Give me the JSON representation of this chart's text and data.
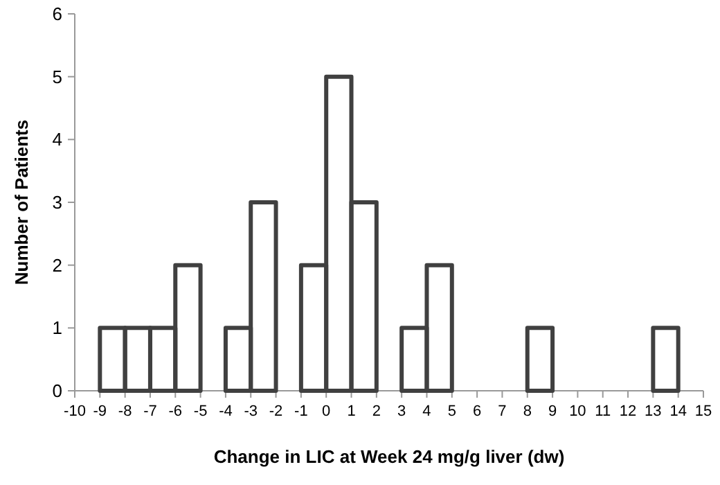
{
  "chart_data": {
    "type": "histogram",
    "xlabel": "Change in LIC at Week 24 mg/g liver (dw)",
    "ylabel": "Number of Patients",
    "bins": [
      -10,
      -9,
      -8,
      -7,
      -6,
      -5,
      -4,
      -3,
      -2,
      -1,
      0,
      1,
      2,
      3,
      4,
      5,
      6,
      7,
      8,
      9,
      10,
      11,
      12,
      13,
      14,
      15
    ],
    "values": [
      0,
      1,
      1,
      1,
      2,
      0,
      1,
      3,
      0,
      2,
      5,
      3,
      0,
      1,
      2,
      0,
      0,
      0,
      1,
      0,
      0,
      0,
      0,
      1,
      0
    ],
    "color": "#404040",
    "xlim": [
      -10,
      15
    ],
    "xticks": [
      -10,
      -9,
      -8,
      -7,
      -6,
      -5,
      -4,
      -3,
      -2,
      -1,
      0,
      1,
      2,
      3,
      4,
      5,
      6,
      7,
      8,
      9,
      10,
      11,
      12,
      13,
      14,
      15
    ],
    "ylim": [
      0,
      6
    ],
    "yticks": [
      0,
      1,
      2,
      3,
      4,
      5,
      6
    ],
    "grid": false
  }
}
